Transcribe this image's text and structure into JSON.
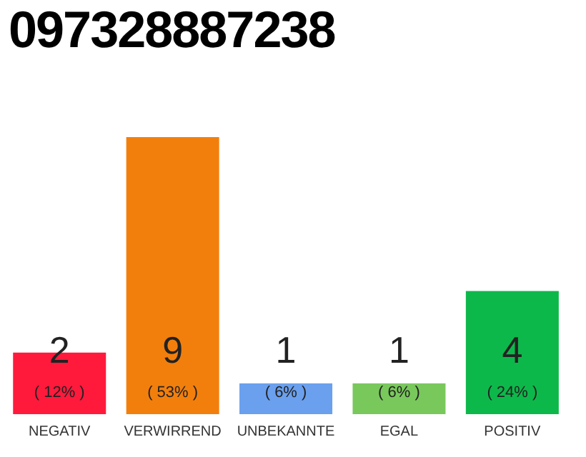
{
  "chart_data": {
    "type": "bar",
    "title": "097328887238",
    "categories": [
      "NEGATIV",
      "VERWIRREND",
      "UNBEKANNTE",
      "EGAL",
      "POSITIV"
    ],
    "values": [
      2,
      9,
      1,
      1,
      4
    ],
    "colors": [
      "#ff1a3c",
      "#f27f0c",
      "#6aa0ee",
      "#79c85c",
      "#0db84a"
    ],
    "data_labels": true,
    "annotations": [
      "( 12% )",
      "( 53% )",
      "( 6% )",
      "( 6% )",
      "( 24% )"
    ],
    "grid": false,
    "legend": false
  }
}
